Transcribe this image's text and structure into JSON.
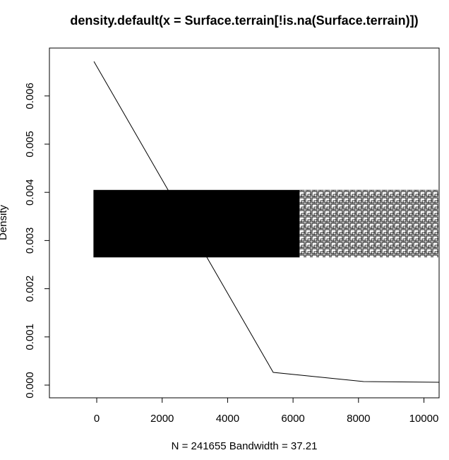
{
  "chart_data": {
    "type": "line",
    "title": "density.default(x = Surface.terrain[!is.na(Surface.terrain)])",
    "xlabel": "N = 241655   Bandwidth = 37.21",
    "ylabel": "Density",
    "xlim": [
      -1446,
      10464
    ],
    "ylim": [
      -0.000264,
      0.006994
    ],
    "xticks": [
      0,
      2000,
      4000,
      6000,
      8000,
      10000
    ],
    "yticks": [
      {
        "value": 0,
        "label": "0.000"
      },
      {
        "value": 0.001,
        "label": "0.001"
      },
      {
        "value": 0.002,
        "label": "0.002"
      },
      {
        "value": 0.003,
        "label": "0.003"
      },
      {
        "value": 0.004,
        "label": "0.004"
      },
      {
        "value": 0.005,
        "label": "0.005"
      },
      {
        "value": 0.006,
        "label": "0.006"
      }
    ],
    "series": [
      {
        "color": "#000000",
        "x": [
          -86,
          5394,
          8155,
          10464
        ],
        "values": [
          0.006716,
          0.000264,
          7.33e-05,
          5.87e-05
        ]
      }
    ],
    "point_bands": [
      {
        "x": [
          -100,
          6200
        ],
        "y": [
          0.00265,
          0.00405
        ],
        "fill": "#000000"
      },
      {
        "x": [
          6200,
          10464
        ],
        "y": [
          0.00265,
          0.00405
        ],
        "fill": "pattern"
      }
    ],
    "grid": false
  }
}
